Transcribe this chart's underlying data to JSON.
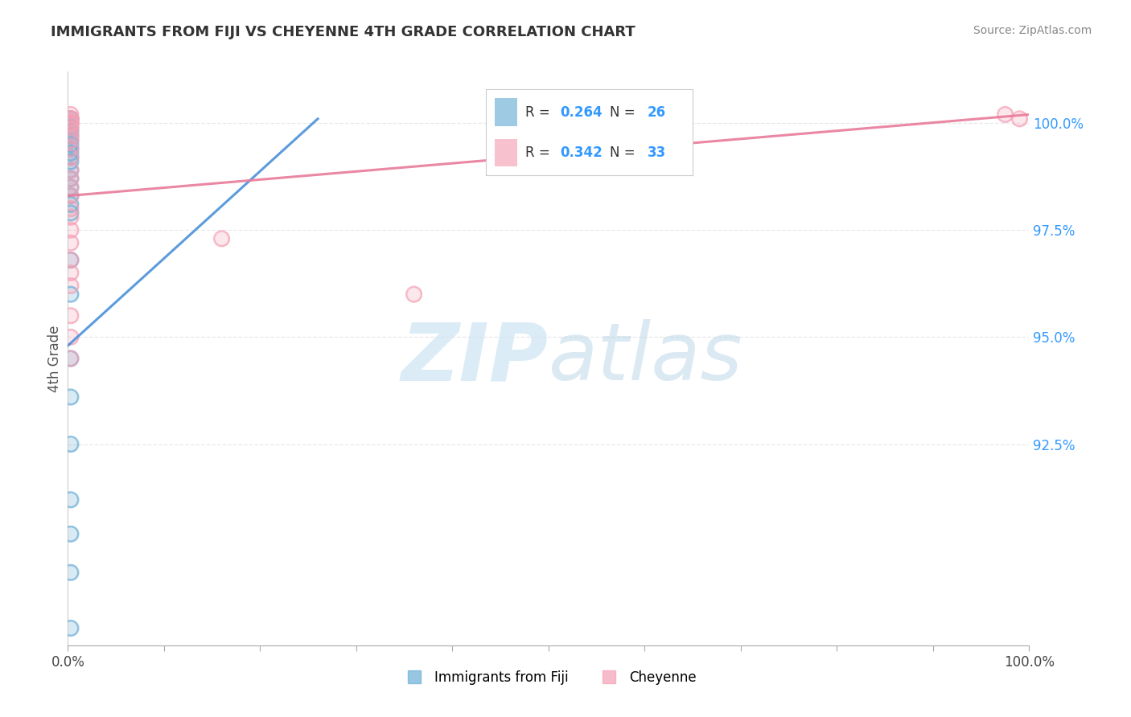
{
  "title": "IMMIGRANTS FROM FIJI VS CHEYENNE 4TH GRADE CORRELATION CHART",
  "source": "Source: ZipAtlas.com",
  "ylabel": "4th Grade",
  "ytick_labels": [
    "92.5%",
    "95.0%",
    "97.5%",
    "100.0%"
  ],
  "ytick_values": [
    0.925,
    0.95,
    0.975,
    1.0
  ],
  "xlim": [
    0.0,
    1.0
  ],
  "ylim": [
    0.878,
    1.012
  ],
  "fiji_R": "0.264",
  "fiji_N": "26",
  "cheyenne_R": "0.342",
  "cheyenne_N": "33",
  "fiji_color": "#6baed6",
  "cheyenne_color": "#f4a0b5",
  "fiji_line_color": "#4a90d9",
  "cheyenne_line_color": "#e87a9a",
  "fiji_x": [
    0.003,
    0.003,
    0.003,
    0.003,
    0.003,
    0.003,
    0.003,
    0.003,
    0.003,
    0.003,
    0.003,
    0.003,
    0.003,
    0.003,
    0.003,
    0.003,
    0.003,
    0.003,
    0.003,
    0.003,
    0.003,
    0.003,
    0.003,
    0.003,
    0.003,
    0.003
  ],
  "fiji_y": [
    1.001,
    1.001,
    0.999,
    0.998,
    0.997,
    0.996,
    0.995,
    0.994,
    0.993,
    0.992,
    0.991,
    0.989,
    0.987,
    0.985,
    0.983,
    0.981,
    0.979,
    0.968,
    0.96,
    0.945,
    0.936,
    0.925,
    0.912,
    0.904,
    0.895,
    0.882
  ],
  "cheyenne_x": [
    0.003,
    0.003,
    0.003,
    0.003,
    0.003,
    0.003,
    0.003,
    0.003,
    0.003,
    0.003,
    0.003,
    0.003,
    0.003,
    0.003,
    0.003,
    0.003,
    0.003,
    0.003,
    0.003,
    0.003,
    0.003,
    0.003,
    0.003,
    0.003,
    0.003,
    0.003,
    0.16,
    0.36,
    0.003,
    0.003,
    0.003,
    0.975,
    0.99
  ],
  "cheyenne_y": [
    1.002,
    1.001,
    1.001,
    1.001,
    1.0,
    1.0,
    1.0,
    1.0,
    1.0,
    0.999,
    0.998,
    0.997,
    0.996,
    0.994,
    0.992,
    0.989,
    0.987,
    0.985,
    0.983,
    0.98,
    0.978,
    0.975,
    0.972,
    0.968,
    0.965,
    0.962,
    0.973,
    0.96,
    0.955,
    0.95,
    0.945,
    1.002,
    1.001
  ],
  "fiji_line_x": [
    0.0,
    0.26
  ],
  "fiji_line_y": [
    0.948,
    1.001
  ],
  "cheyenne_line_x": [
    0.0,
    1.0
  ],
  "cheyenne_line_y": [
    0.983,
    1.002
  ],
  "watermark_zip_color": "#cce4f5",
  "watermark_atlas_color": "#b8d4e8",
  "background_color": "#ffffff",
  "grid_color": "#e8e8e8",
  "title_fontsize": 13,
  "tick_fontsize": 12,
  "legend_fontsize": 12
}
